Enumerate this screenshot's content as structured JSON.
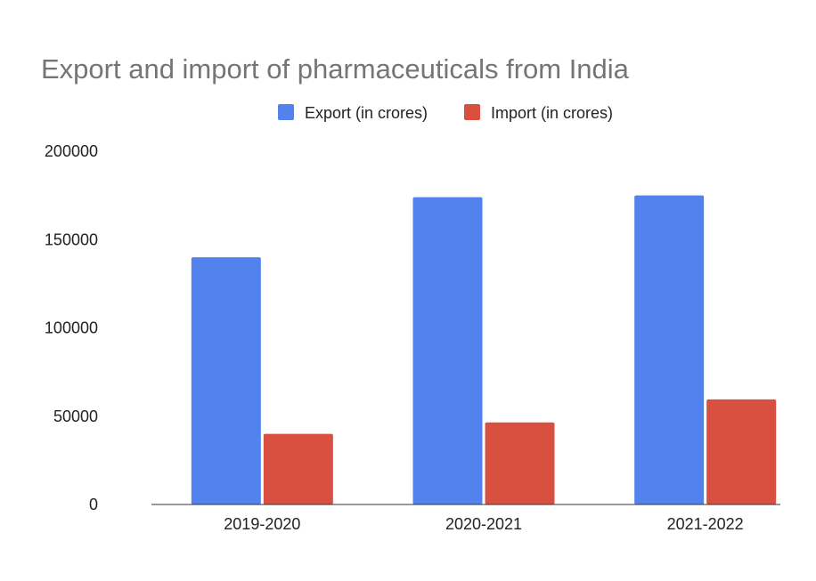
{
  "chart_data": {
    "type": "bar",
    "title": "Export and import of pharmaceuticals from India",
    "categories": [
      "2019-2020",
      "2020-2021",
      "2021-2022"
    ],
    "series": [
      {
        "name": "Export (in crores)",
        "color": "#5182EE",
        "values": [
          140000,
          174000,
          175000
        ]
      },
      {
        "name": "Import (in crores)",
        "color": "#D95040",
        "values": [
          40000,
          46500,
          59500
        ]
      }
    ],
    "ylim": [
      0,
      200000
    ],
    "yticks": [
      "0",
      "50000",
      "100000",
      "150000",
      "200000"
    ],
    "tick_values": [
      0,
      50000,
      100000,
      150000,
      200000
    ],
    "grid": false,
    "legend": "top"
  }
}
